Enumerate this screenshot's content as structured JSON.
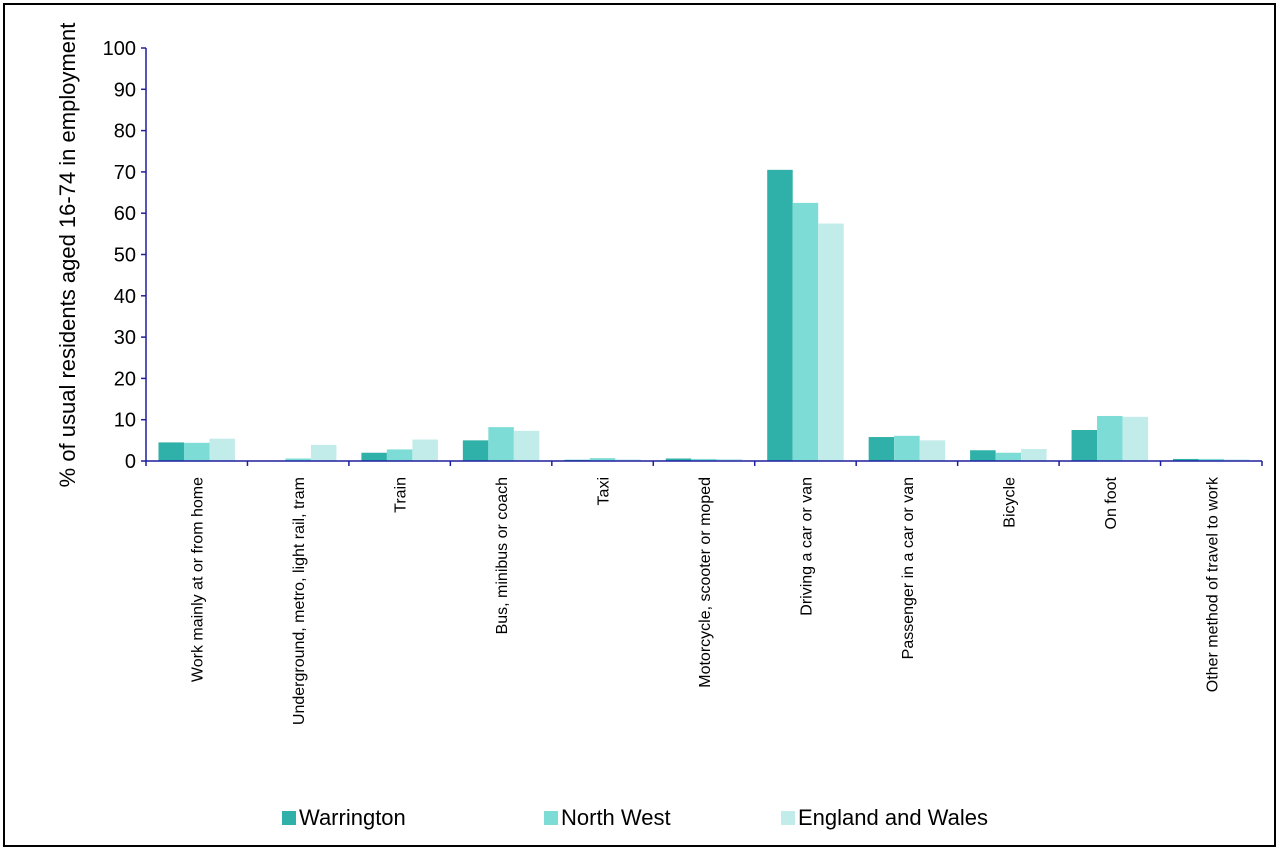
{
  "chart_data": {
    "type": "bar",
    "title": "",
    "xlabel": "",
    "ylabel": "% of usual residents aged 16-74 in employment",
    "ylim": [
      0,
      100
    ],
    "yticks": [
      0,
      10,
      20,
      30,
      40,
      50,
      60,
      70,
      80,
      90,
      100
    ],
    "grid": false,
    "legend_position": "bottom",
    "categories": [
      "Work mainly at or from home",
      "Underground, metro, light rail, tram",
      "Train",
      "Bus, minibus or coach",
      "Taxi",
      "Motorcycle, scooter or moped",
      "Driving a car or van",
      "Passenger in a car or van",
      "Bicycle",
      "On foot",
      "Other method of travel to work"
    ],
    "series": [
      {
        "name": "Warrington",
        "color": "#2fb0a8",
        "values": [
          4.5,
          0.1,
          2.0,
          5.0,
          0.3,
          0.6,
          70.5,
          5.8,
          2.6,
          7.5,
          0.5
        ]
      },
      {
        "name": "North West",
        "color": "#7edcd6",
        "values": [
          4.4,
          0.6,
          2.8,
          8.2,
          0.7,
          0.5,
          62.5,
          6.1,
          2.0,
          10.9,
          0.5
        ]
      },
      {
        "name": "England and Wales",
        "color": "#c2ecea",
        "values": [
          5.4,
          3.9,
          5.2,
          7.3,
          0.4,
          0.5,
          57.5,
          5.0,
          2.9,
          10.7,
          0.4
        ]
      }
    ],
    "axis_color": "#1f1f9f"
  }
}
